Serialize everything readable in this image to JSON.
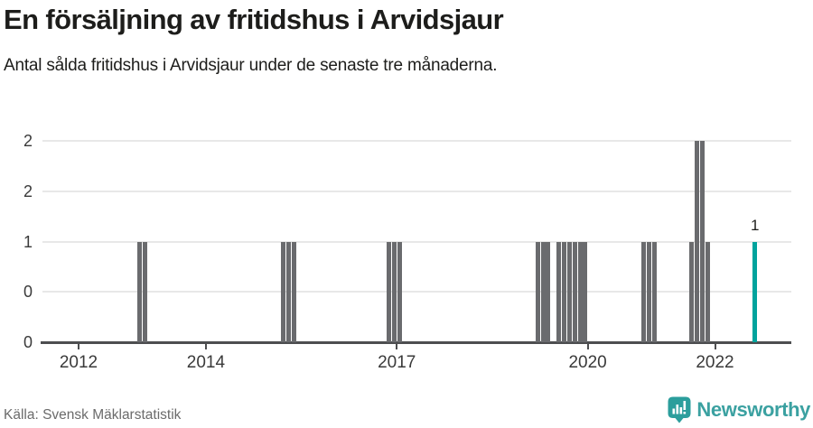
{
  "header": {
    "title": "En försäljning av fritidshus i Arvidsjaur",
    "subtitle": "Antal sålda fritidshus i Arvidsjaur under de senaste tre månaderna."
  },
  "chart_data": {
    "type": "bar",
    "title": "En försäljning av fritidshus i Arvidsjaur",
    "xlabel": "",
    "ylabel": "",
    "x_unit": "month",
    "ylim": [
      0,
      2
    ],
    "grid": true,
    "legend": "none",
    "y_ticks": [
      {
        "value": 0,
        "label": "0"
      },
      {
        "value": 0.5,
        "label": "0"
      },
      {
        "value": 1,
        "label": "1"
      },
      {
        "value": 1.5,
        "label": "2"
      },
      {
        "value": 2,
        "label": "2"
      }
    ],
    "x_ticks": [
      {
        "value": 2012,
        "label": "2012"
      },
      {
        "value": 2014,
        "label": "2014"
      },
      {
        "value": 2017,
        "label": "2017"
      },
      {
        "value": 2020,
        "label": "2020"
      },
      {
        "value": 2022,
        "label": "2022"
      }
    ],
    "bar_color": "#6a6b6e",
    "highlight_color": "#00a39d",
    "bars": [
      {
        "month": "2012-12",
        "value": 1
      },
      {
        "month": "2013-01",
        "value": 1
      },
      {
        "month": "2015-03",
        "value": 1
      },
      {
        "month": "2015-04",
        "value": 1
      },
      {
        "month": "2015-05",
        "value": 1
      },
      {
        "month": "2016-11",
        "value": 1
      },
      {
        "month": "2016-12",
        "value": 1
      },
      {
        "month": "2017-01",
        "value": 1
      },
      {
        "month": "2019-03",
        "value": 1
      },
      {
        "month": "2019-04",
        "value": 1
      },
      {
        "month": "2019-05",
        "value": 1
      },
      {
        "month": "2019-07",
        "value": 1
      },
      {
        "month": "2019-08",
        "value": 1
      },
      {
        "month": "2019-09",
        "value": 1
      },
      {
        "month": "2019-10",
        "value": 1
      },
      {
        "month": "2019-11",
        "value": 1
      },
      {
        "month": "2019-12",
        "value": 1
      },
      {
        "month": "2020-11",
        "value": 1
      },
      {
        "month": "2020-12",
        "value": 1
      },
      {
        "month": "2021-01",
        "value": 1
      },
      {
        "month": "2021-08",
        "value": 1
      },
      {
        "month": "2021-09",
        "value": 2
      },
      {
        "month": "2021-10",
        "value": 2
      },
      {
        "month": "2021-11",
        "value": 1
      },
      {
        "month": "2022-08",
        "value": 1,
        "highlight": true,
        "label": "1"
      }
    ]
  },
  "footer": {
    "source": "Källa: Svensk Mäklarstatistik",
    "logo_text": "Newsworthy",
    "logo_color": "#3ba1a1",
    "logo_icon_color": "#2b9e9c"
  }
}
